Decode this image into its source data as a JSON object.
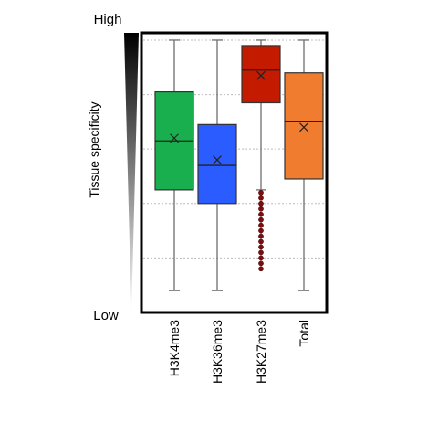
{
  "chart_data": {
    "type": "boxplot",
    "ylabel": "Tissue specificity",
    "y_high_label": "High",
    "y_low_label": "Low",
    "categories": [
      "H3K4me3",
      "H3K36me3",
      "H3K27me3",
      "Total"
    ],
    "series": [
      {
        "category": "H3K4me3",
        "color": "#1aaf4e",
        "whisker_low": 0.08,
        "q1": 0.45,
        "median": 0.63,
        "mean": 0.64,
        "q3": 0.81,
        "whisker_high": 1.0,
        "outliers": []
      },
      {
        "category": "H3K36me3",
        "color": "#2b5cff",
        "whisker_low": 0.08,
        "q1": 0.4,
        "median": 0.54,
        "mean": 0.56,
        "q3": 0.69,
        "whisker_high": 1.0,
        "outliers": []
      },
      {
        "category": "H3K27me3",
        "color": "#c41a00",
        "whisker_low": 0.45,
        "q1": 0.77,
        "median": 0.89,
        "mean": 0.87,
        "q3": 0.98,
        "whisker_high": 1.0,
        "outliers": [
          0.16,
          0.18,
          0.2,
          0.22,
          0.24,
          0.26,
          0.28,
          0.3,
          0.32,
          0.34,
          0.36,
          0.38,
          0.4,
          0.42,
          0.44
        ]
      },
      {
        "category": "Total",
        "color": "#f07c30",
        "whisker_low": 0.08,
        "q1": 0.49,
        "median": 0.7,
        "mean": 0.68,
        "q3": 0.88,
        "whisker_high": 1.0,
        "outliers": []
      }
    ],
    "ylim": [
      0,
      1.02
    ],
    "grid_lines": [
      0.2,
      0.4,
      0.6,
      0.8,
      1.0
    ],
    "grid": true,
    "legend": "none"
  }
}
